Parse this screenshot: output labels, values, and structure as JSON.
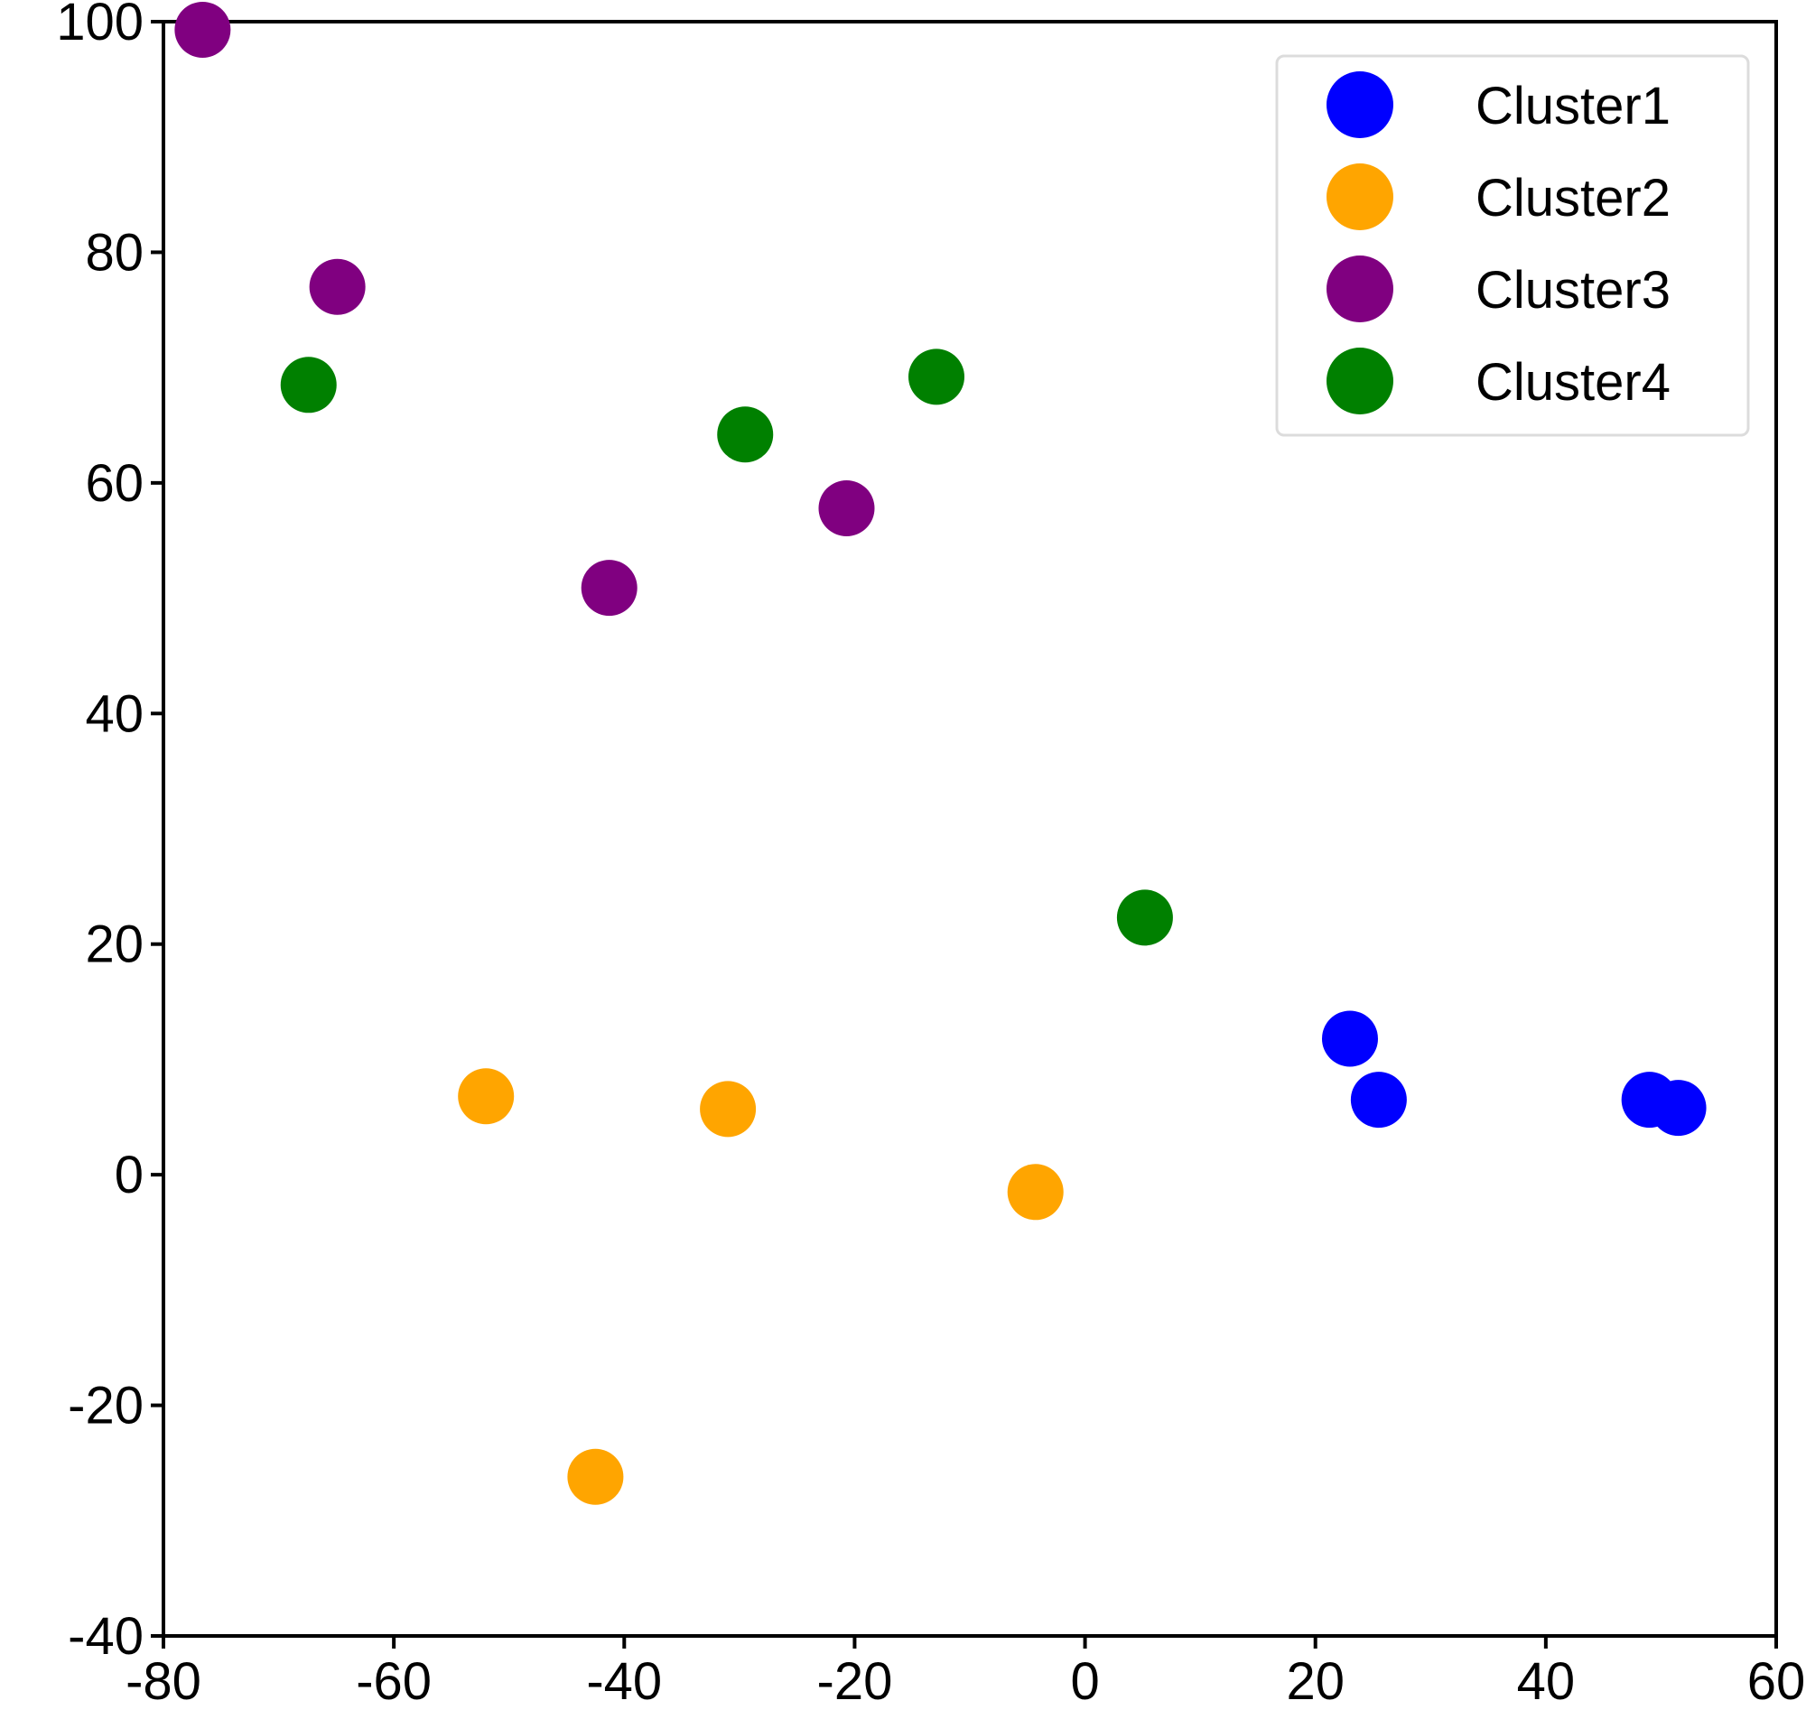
{
  "chart_data": {
    "type": "scatter",
    "title": "",
    "xlabel": "",
    "ylabel": "",
    "xlim": [
      -80,
      60
    ],
    "ylim": [
      -40,
      100
    ],
    "x_ticks": [
      -80,
      -60,
      -40,
      -20,
      0,
      20,
      40,
      60
    ],
    "y_ticks": [
      -40,
      -20,
      0,
      20,
      40,
      60,
      80,
      100
    ],
    "x_tick_labels": [
      "-80",
      "-60",
      "-40",
      "-20",
      "0",
      "20",
      "40",
      "60"
    ],
    "y_tick_labels": [
      "-40",
      "-20",
      "0",
      "20",
      "40",
      "60",
      "80",
      "100"
    ],
    "grid": false,
    "legend_position": "top-right",
    "series": [
      {
        "name": "Cluster1",
        "color": "#0000ff",
        "points": [
          {
            "x": 23,
            "y": 11.8
          },
          {
            "x": 25.5,
            "y": 6.5
          },
          {
            "x": 49,
            "y": 6.5
          },
          {
            "x": 51.5,
            "y": 5.8
          }
        ]
      },
      {
        "name": "Cluster2",
        "color": "#ffa500",
        "points": [
          {
            "x": -52,
            "y": 6.8
          },
          {
            "x": -31,
            "y": 5.7
          },
          {
            "x": -4.3,
            "y": -1.5
          },
          {
            "x": -42.5,
            "y": -26.2
          }
        ]
      },
      {
        "name": "Cluster3",
        "color": "#800080",
        "points": [
          {
            "x": -76.6,
            "y": 99.3
          },
          {
            "x": -64.9,
            "y": 77
          },
          {
            "x": -20.7,
            "y": 57.8
          },
          {
            "x": -41.3,
            "y": 50.9
          }
        ]
      },
      {
        "name": "Cluster4",
        "color": "#008000",
        "points": [
          {
            "x": -67.4,
            "y": 68.5
          },
          {
            "x": -29.5,
            "y": 64.2
          },
          {
            "x": -12.9,
            "y": 69.2
          },
          {
            "x": 5.2,
            "y": 22.3
          }
        ]
      }
    ]
  }
}
